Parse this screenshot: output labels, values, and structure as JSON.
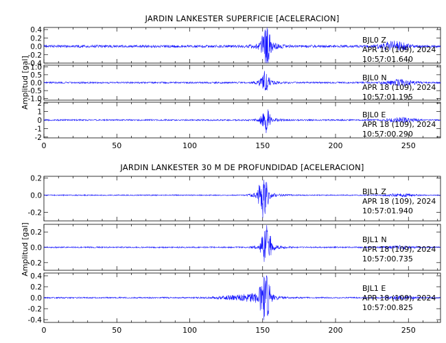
{
  "chart_data": [
    {
      "type": "line",
      "title": "JARDIN LANKESTER SUPERFICIE [ACELERACION]",
      "ylabel": "Amplitud [gal]",
      "xlim": [
        0,
        272
      ],
      "x_ticks": [
        "0",
        "50",
        "100",
        "150",
        "200",
        "250"
      ],
      "series": [
        {
          "name": "BJL0  Z",
          "date": "APR 18 (109), 2024",
          "time": "10:57:01.640",
          "ylim": [
            -0.4,
            0.45
          ],
          "y_ticks": [
            "0.4",
            "0.2",
            "0.0",
            "-0.2",
            "-0.4"
          ],
          "envelope": {
            "noise": 0.03,
            "onset": 135,
            "peak_time": 152,
            "peak": 0.43,
            "coda_end": 170,
            "late_burst": [
              240,
              0.12
            ]
          }
        },
        {
          "name": "BJL0  N",
          "date": "APR 18 (109), 2024",
          "time": "10:57:01.195",
          "ylim": [
            -1.1,
            1.1
          ],
          "y_ticks": [
            "1.0",
            "0.5",
            "0.0",
            "-0.5",
            "-1.0"
          ],
          "envelope": {
            "noise": 0.05,
            "onset": 138,
            "peak_time": 151,
            "peak": 0.55,
            "coda_end": 170,
            "late_burst": [
              245,
              0.2
            ]
          }
        },
        {
          "name": "BJL0  E",
          "date": "APR 18 (109), 2024",
          "time": "10:57:00.290",
          "ylim": [
            -2.1,
            2.1
          ],
          "y_ticks": [
            "2",
            "1",
            "0",
            "-1",
            "-2"
          ],
          "envelope": {
            "noise": 0.08,
            "onset": 138,
            "peak_time": 152,
            "peak": 1.2,
            "coda_end": 170,
            "late_burst": [
              245,
              0.3
            ]
          }
        }
      ]
    },
    {
      "type": "line",
      "title": "JARDIN LANKESTER 30 M DE PROFUNDIDAD [ACELERACION]",
      "ylabel": "Amplitud [gal]",
      "xlim": [
        0,
        272
      ],
      "x_ticks": [
        "0",
        "50",
        "100",
        "150",
        "200",
        "250"
      ],
      "series": [
        {
          "name": "BJL1  Z",
          "date": "APR 18 (109), 2024",
          "time": "10:57:01.940",
          "ylim": [
            -0.3,
            0.22
          ],
          "y_ticks": [
            "0.2",
            "0.0",
            "-0.2"
          ],
          "envelope": {
            "noise": 0.006,
            "onset": 135,
            "peak_time": 150,
            "peak": 0.21,
            "coda_end": 175,
            "late_burst": [
              245,
              0.02
            ]
          }
        },
        {
          "name": "BJL1  N",
          "date": "APR 18 (109), 2024",
          "time": "10:57:00.735",
          "ylim": [
            -0.3,
            0.3
          ],
          "y_ticks": [
            "0.2",
            "0.0",
            "-0.2"
          ],
          "envelope": {
            "noise": 0.008,
            "onset": 138,
            "peak_time": 152,
            "peak": 0.25,
            "coda_end": 175,
            "late_burst": [
              245,
              0.02
            ]
          }
        },
        {
          "name": "BJL1  E",
          "date": "APR 18 (109), 2024",
          "time": "10:57:00.825",
          "ylim": [
            -0.45,
            0.45
          ],
          "y_ticks": [
            "0.4",
            "0.2",
            "0.0",
            "-0.2",
            "-0.4"
          ],
          "envelope": {
            "noise": 0.012,
            "onset": 100,
            "peak_time": 151,
            "peak": 0.42,
            "coda_end": 178,
            "late_burst": [
              245,
              0.03
            ]
          }
        }
      ]
    }
  ],
  "style": {
    "trace_color": "#1414ff",
    "axis_color": "#000000",
    "background": "#ffffff"
  }
}
